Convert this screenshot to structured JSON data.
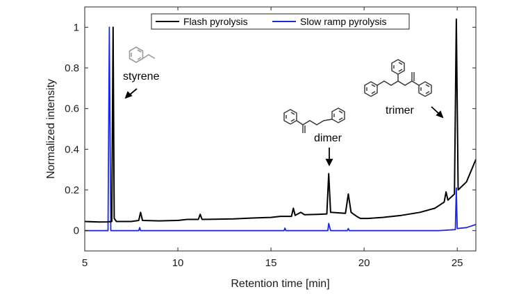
{
  "chart_data": {
    "type": "line",
    "xlabel": "Retention time [min]",
    "ylabel": "Normalized intensity",
    "xlim": [
      5,
      26
    ],
    "ylim": [
      -0.1,
      1.1
    ],
    "x_ticks": [
      5,
      10,
      15,
      20,
      25
    ],
    "y_ticks": [
      0,
      0.2,
      0.4,
      0.6,
      0.8,
      1
    ],
    "legend_position": "top-center",
    "grid": false,
    "series": [
      {
        "name": "Flash pyrolysis",
        "color": "#000000",
        "points": [
          [
            5.0,
            0.045
          ],
          [
            5.8,
            0.042
          ],
          [
            6.2,
            0.043
          ],
          [
            6.45,
            0.045
          ],
          [
            6.52,
            1.0
          ],
          [
            6.58,
            0.06
          ],
          [
            6.7,
            0.045
          ],
          [
            7.5,
            0.045
          ],
          [
            7.9,
            0.05
          ],
          [
            8.0,
            0.09
          ],
          [
            8.1,
            0.05
          ],
          [
            9.0,
            0.048
          ],
          [
            10.0,
            0.05
          ],
          [
            10.5,
            0.055
          ],
          [
            11.1,
            0.055
          ],
          [
            11.2,
            0.08
          ],
          [
            11.3,
            0.055
          ],
          [
            12.0,
            0.056
          ],
          [
            13.0,
            0.058
          ],
          [
            14.0,
            0.062
          ],
          [
            15.0,
            0.065
          ],
          [
            15.5,
            0.07
          ],
          [
            16.1,
            0.07
          ],
          [
            16.2,
            0.11
          ],
          [
            16.3,
            0.075
          ],
          [
            16.6,
            0.09
          ],
          [
            16.8,
            0.078
          ],
          [
            17.5,
            0.08
          ],
          [
            18.0,
            0.082
          ],
          [
            18.1,
            0.28
          ],
          [
            18.2,
            0.09
          ],
          [
            19.0,
            0.085
          ],
          [
            19.15,
            0.18
          ],
          [
            19.3,
            0.09
          ],
          [
            19.6,
            0.07
          ],
          [
            19.8,
            0.06
          ],
          [
            20.2,
            0.06
          ],
          [
            21.0,
            0.065
          ],
          [
            22.0,
            0.075
          ],
          [
            23.0,
            0.09
          ],
          [
            23.8,
            0.11
          ],
          [
            24.3,
            0.14
          ],
          [
            24.4,
            0.19
          ],
          [
            24.5,
            0.15
          ],
          [
            24.85,
            0.18
          ],
          [
            24.95,
            1.04
          ],
          [
            25.05,
            0.2
          ],
          [
            25.5,
            0.24
          ],
          [
            26.0,
            0.35
          ]
        ]
      },
      {
        "name": "Slow ramp pyrolysis",
        "color": "#1f2bd1",
        "points": [
          [
            5.0,
            0.0
          ],
          [
            6.25,
            0.0
          ],
          [
            6.32,
            1.0
          ],
          [
            6.4,
            0.0
          ],
          [
            7.9,
            0.0
          ],
          [
            7.95,
            0.015
          ],
          [
            8.0,
            0.0
          ],
          [
            15.7,
            0.0
          ],
          [
            15.75,
            0.012
          ],
          [
            15.8,
            0.0
          ],
          [
            18.05,
            0.0
          ],
          [
            18.1,
            0.035
          ],
          [
            18.2,
            0.0
          ],
          [
            19.1,
            0.0
          ],
          [
            19.15,
            0.01
          ],
          [
            19.2,
            0.0
          ],
          [
            24.0,
            0.0
          ],
          [
            24.9,
            0.005
          ],
          [
            24.95,
            0.21
          ],
          [
            25.0,
            0.01
          ],
          [
            25.5,
            0.015
          ],
          [
            26.0,
            0.03
          ]
        ]
      }
    ],
    "annotations": [
      {
        "text": "styrene",
        "x": 5.0,
        "y": 0.77
      },
      {
        "text": "dimer",
        "x": 18.1,
        "y": 0.46
      },
      {
        "text": "trimer",
        "x": 23.5,
        "y": 0.63
      }
    ]
  }
}
